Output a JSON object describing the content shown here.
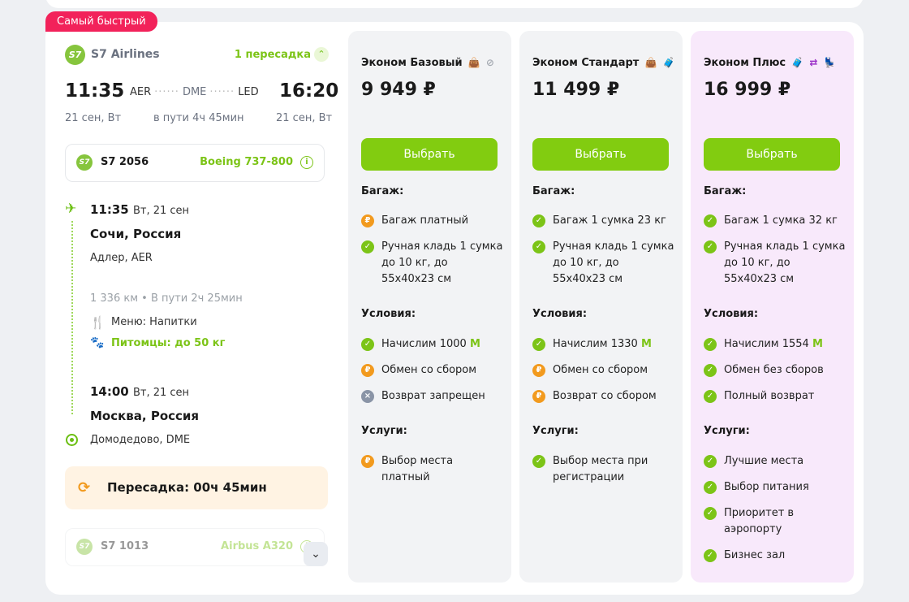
{
  "badge": "Самый быстрый",
  "itinerary": {
    "airline_logo": "S7",
    "airline": "S7 Airlines",
    "transfers_link": "1 пересадка",
    "departure_time": "11:35",
    "arrival_time": "16:20",
    "origin_code": "AER",
    "via_code": "DME",
    "dest_code": "LED",
    "departure_date": "21 сен, Вт",
    "arrival_date": "21 сен, Вт",
    "duration": "в пути 4ч 45мин"
  },
  "segment1": {
    "flight": "S7 2056",
    "aircraft": "Boeing 737-800",
    "dep_time": "11:35",
    "dep_date": "Вт, 21 сен",
    "dep_city": "Сочи, Россия",
    "dep_airport": "Адлер, AER",
    "distance": "1 336 км  •  В пути 2ч 25мин",
    "menu": "Меню: Напитки",
    "pets": "Питомцы: до 50 кг",
    "arr_time": "14:00",
    "arr_date": "Вт, 21 сен",
    "arr_city": "Москва, Россия",
    "arr_airport": "Домодедово, DME"
  },
  "transfer": "Пересадка: 00ч 45мин",
  "segment2": {
    "flight": "S7 1013",
    "aircraft": "Airbus A320"
  },
  "fares": [
    {
      "name": "Эконом Базовый",
      "price": "9 949 ₽",
      "button": "Выбрать",
      "baggage_title": "Багаж:",
      "baggage": [
        {
          "text": "Багаж платный",
          "status": "paid"
        },
        {
          "text": "Ручная кладь 1 сумка до 10 кг, до 55х40х23 см",
          "status": "ok"
        }
      ],
      "conditions_title": "Условия:",
      "miles_text": "Начислим 1000",
      "conditions": [
        {
          "text": "Обмен со сбором",
          "status": "paid"
        },
        {
          "text": "Возврат запрещен",
          "status": "no"
        }
      ],
      "services_title": "Услуги:",
      "services": [
        {
          "text": "Выбор места платный",
          "status": "paid"
        }
      ]
    },
    {
      "name": "Эконом Стандарт",
      "price": "11 499 ₽",
      "button": "Выбрать",
      "baggage_title": "Багаж:",
      "baggage": [
        {
          "text": "Багаж 1 сумка 23 кг",
          "status": "ok"
        },
        {
          "text": "Ручная кладь 1 сумка до 10 кг, до 55х40х23 см",
          "status": "ok"
        }
      ],
      "conditions_title": "Условия:",
      "miles_text": "Начислим 1330",
      "conditions": [
        {
          "text": "Обмен со сбором",
          "status": "paid"
        },
        {
          "text": "Возврат со сбором",
          "status": "paid"
        }
      ],
      "services_title": "Услуги:",
      "services": [
        {
          "text": "Выбор места при регистрации",
          "status": "ok"
        }
      ]
    },
    {
      "name": "Эконом Плюс",
      "price": "16 999 ₽",
      "button": "Выбрать",
      "baggage_title": "Багаж:",
      "baggage": [
        {
          "text": "Багаж 1 сумка 32 кг",
          "status": "ok"
        },
        {
          "text": "Ручная кладь 1 сумка до 10 кг, до 55х40х23 см",
          "status": "ok"
        }
      ],
      "conditions_title": "Условия:",
      "miles_text": "Начислим 1554",
      "conditions": [
        {
          "text": "Обмен без сборов",
          "status": "ok"
        },
        {
          "text": "Полный возврат",
          "status": "ok"
        }
      ],
      "services_title": "Услуги:",
      "services": [
        {
          "text": "Лучшие места",
          "status": "ok"
        },
        {
          "text": "Выбор питания",
          "status": "ok"
        },
        {
          "text": "Приоритет в аэропорту",
          "status": "ok"
        },
        {
          "text": "Бизнес зал",
          "status": "ok"
        }
      ]
    }
  ],
  "miles_symbol": "M",
  "colors": {
    "accent_green": "#82cc10",
    "badge_red": "#f2225a",
    "transfer_bg": "#fff3e3",
    "plus_bg": "#f8e9fb"
  }
}
